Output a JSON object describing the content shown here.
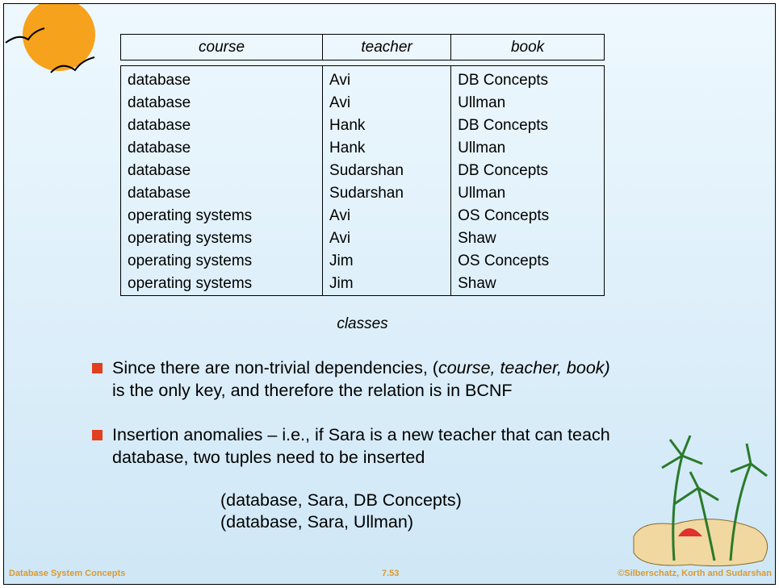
{
  "table": {
    "header": [
      "course",
      "teacher",
      "book"
    ],
    "rows": [
      [
        "database",
        "Avi",
        "DB Concepts"
      ],
      [
        "database",
        "Avi",
        "Ullman"
      ],
      [
        "database",
        "Hank",
        "DB Concepts"
      ],
      [
        "database",
        "Hank",
        "Ullman"
      ],
      [
        "database",
        "Sudarshan",
        "DB Concepts"
      ],
      [
        "database",
        "Sudarshan",
        "Ullman"
      ],
      [
        "operating systems",
        "Avi",
        "OS Concepts"
      ],
      [
        "operating systems",
        "Avi",
        "Shaw"
      ],
      [
        "operating systems",
        "Jim",
        "OS Concepts"
      ],
      [
        "operating systems",
        "Jim",
        "Shaw"
      ]
    ],
    "caption": "classes"
  },
  "bullets": [
    {
      "text": "Since there are non-trivial dependencies, (",
      "emphasis": "course, teacher, book)",
      "text_end": "is the only key, and therefore the relation is in BCNF"
    },
    {
      "text": "Insertion anomalies – i.e., if Sara is a new teacher that can teach database, two tuples need to be inserted"
    }
  ],
  "tuples": [
    "(database, Sara, DB Concepts)",
    "(database, Sara, Ullman)"
  ],
  "footer": {
    "left": "Database System Concepts",
    "center": "7.53",
    "right": "©Silberschatz, Korth and Sudarshan"
  }
}
